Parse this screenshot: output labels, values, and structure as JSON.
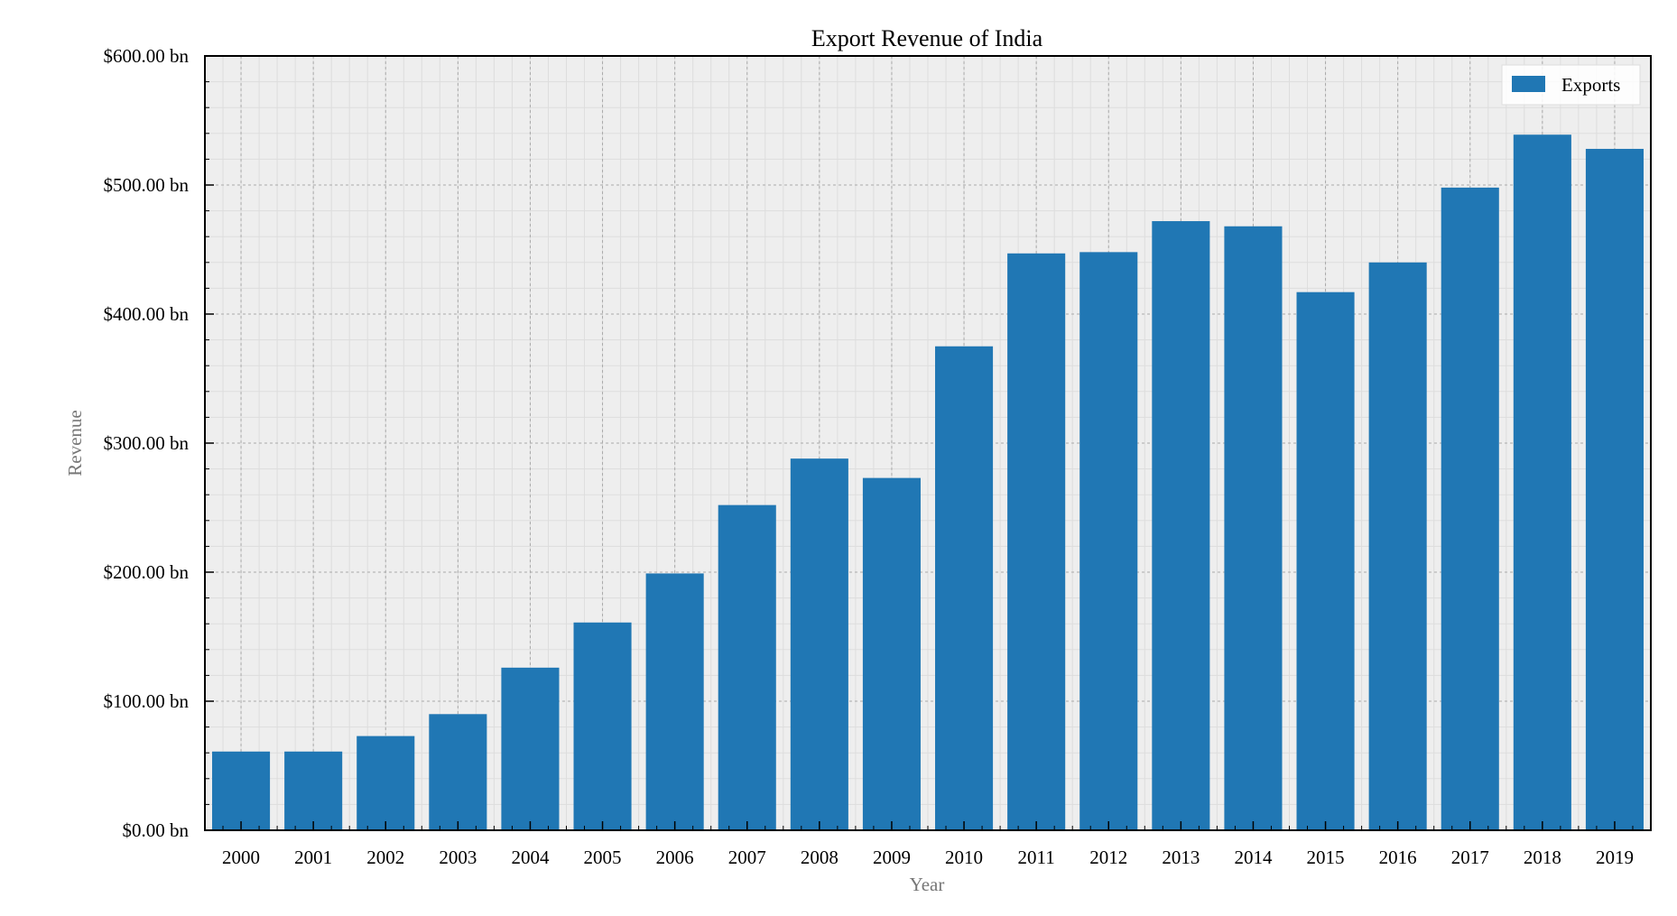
{
  "chart_data": {
    "type": "bar",
    "title": "Export Revenue of India",
    "xlabel": "Year",
    "ylabel": "Revenue",
    "categories": [
      "2000",
      "2001",
      "2002",
      "2003",
      "2004",
      "2005",
      "2006",
      "2007",
      "2008",
      "2009",
      "2010",
      "2011",
      "2012",
      "2013",
      "2014",
      "2015",
      "2016",
      "2017",
      "2018",
      "2019"
    ],
    "series": [
      {
        "name": "Exports",
        "color": "#2077b4",
        "values": [
          61,
          61,
          73,
          90,
          126,
          161,
          199,
          252,
          288,
          273,
          375,
          447,
          448,
          472,
          468,
          417,
          440,
          498,
          539,
          528
        ]
      }
    ],
    "ylim": [
      0,
      600
    ],
    "yticks": [
      {
        "value": 0,
        "label": "$0.00 bn"
      },
      {
        "value": 100,
        "label": "$100.00 bn"
      },
      {
        "value": 200,
        "label": "$200.00 bn"
      },
      {
        "value": 300,
        "label": "$300.00 bn"
      },
      {
        "value": 400,
        "label": "$400.00 bn"
      },
      {
        "value": 500,
        "label": "$500.00 bn"
      },
      {
        "value": 600,
        "label": "$600.00 bn"
      }
    ],
    "grid": true,
    "legend_position": "top-right",
    "plot_background": "#eeeeee"
  }
}
